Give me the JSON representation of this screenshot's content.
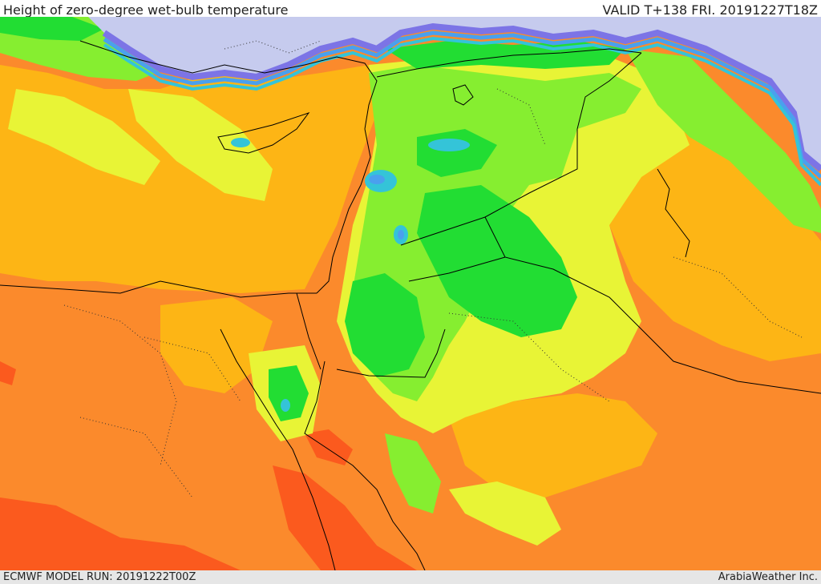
{
  "header": {
    "title": "Height of zero-degree wet-bulb temperature",
    "valid": "VALID T+138 FRI. 20191227T18Z"
  },
  "footer": {
    "model_run": "ECMWF MODEL RUN: 20191222T00Z",
    "credit": "ArabiaWeather Inc."
  },
  "map": {
    "palette": {
      "sea_cold": "#c6cbee",
      "violet": "#7c74e6",
      "blue": "#4aa0ee",
      "cyan": "#34c4d8",
      "green": "#22dd33",
      "light_green": "#86ee30",
      "yellow": "#e8f436",
      "orange": "#fdb515",
      "dark_orange": "#fb8a2c",
      "red": "#fb5a1e",
      "border": "#000000"
    },
    "icons": {
      "coastline": "coastline-lines",
      "borders": "country-border-lines",
      "provinces": "province-dotted-lines"
    }
  }
}
